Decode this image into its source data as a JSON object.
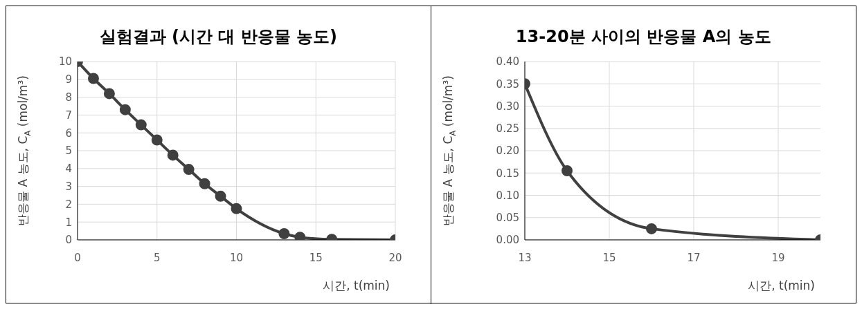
{
  "chart_data": [
    {
      "type": "line",
      "title": "실험결과 (시간 대 반응물 농도)",
      "xlabel": "시간, t(min)",
      "ylabel": "반응물 A 농도, C$_{A}$(mol/m³)",
      "x": [
        0,
        1,
        2,
        3,
        4,
        5,
        6,
        7,
        8,
        9,
        10,
        13,
        14,
        16,
        20
      ],
      "series": [
        {
          "color": "#404040",
          "values": [
            10,
            9.05,
            8.2,
            7.3,
            6.45,
            5.6,
            4.75,
            3.95,
            3.15,
            2.45,
            1.75,
            0.35,
            0.15,
            0.03,
            0
          ]
        }
      ],
      "xlim": [
        0,
        20
      ],
      "xticks": [
        0,
        5,
        10,
        15,
        20
      ],
      "ylim": [
        0,
        10
      ],
      "yticks": [
        0,
        1,
        2,
        3,
        4,
        5,
        6,
        7,
        8,
        9,
        10
      ],
      "grid": true,
      "marker": "circle"
    },
    {
      "type": "line",
      "title": "13-20분 사이의 반응물 A의 농도",
      "xlabel": "시간, t(min)",
      "ylabel": "반응물 A 농도, C$_{A}$(mol/m³)",
      "x": [
        13,
        14,
        16,
        20
      ],
      "series": [
        {
          "color": "#404040",
          "values": [
            0.35,
            0.155,
            0.025,
            0
          ]
        }
      ],
      "xlim": [
        13,
        20
      ],
      "xticks": [
        13,
        15,
        17,
        19
      ],
      "ylim": [
        0,
        0.4
      ],
      "yticks": [
        {
          "value": 0,
          "label": "0.00"
        },
        {
          "value": 0.05,
          "label": "0.05"
        },
        {
          "value": 0.1,
          "label": "0.10"
        },
        {
          "value": 0.15,
          "label": "0.15"
        },
        {
          "value": 0.2,
          "label": "0.20"
        },
        {
          "value": 0.25,
          "label": "0.25"
        },
        {
          "value": 0.3,
          "label": "0.30"
        },
        {
          "value": 0.35,
          "label": "0.35"
        },
        {
          "value": 0.4,
          "label": "0.40"
        }
      ],
      "grid": true,
      "marker": "circle"
    }
  ]
}
